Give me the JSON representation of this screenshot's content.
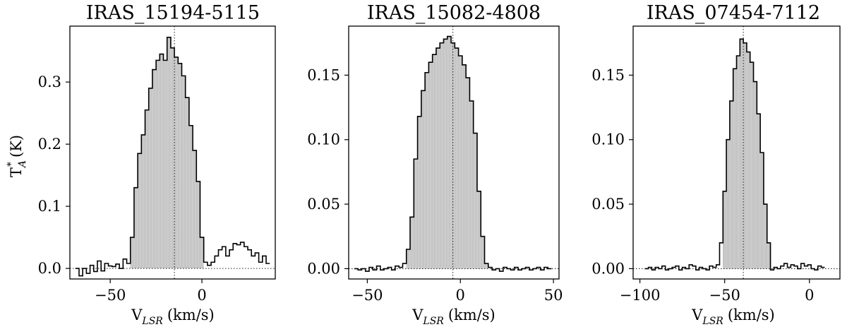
{
  "y_axis_label_main": "T",
  "y_axis_label_sup": "*",
  "y_axis_label_sub": "A",
  "y_axis_label_unit": "(K)",
  "chart_data": [
    {
      "type": "line",
      "title": "IRAS_15194-5115",
      "xlabel": "V_LSR (km/s)",
      "xlabel_main": "V",
      "xlabel_sub": "LSR",
      "xlabel_unit": "(km/s)",
      "ylabel": "T*_A (K)",
      "xlim": [
        -72,
        40
      ],
      "ylim": [
        -0.017,
        0.39
      ],
      "xticks": [
        -50,
        0
      ],
      "xtick_labels": [
        "−50",
        "0"
      ],
      "yticks": [
        0.0,
        0.1,
        0.2,
        0.3
      ],
      "ytick_labels": [
        "0.0",
        "0.1",
        "0.2",
        "0.3"
      ],
      "v_center": -15,
      "emission_range": [
        -38,
        0
      ],
      "series": [
        {
          "x": [
            -68,
            -66,
            -64,
            -62,
            -60,
            -58,
            -56,
            -54,
            -52,
            -50,
            -48,
            -46,
            -44,
            -42,
            -40,
            -38,
            -36,
            -34,
            -32,
            -30,
            -28,
            -26,
            -24,
            -22,
            -20,
            -18,
            -16,
            -14,
            -12,
            -10,
            -8,
            -6,
            -4,
            -2,
            0,
            2,
            4,
            6,
            8,
            10,
            12,
            14,
            16,
            18,
            20,
            22,
            24,
            26,
            28,
            30,
            32,
            34,
            36
          ],
          "y": [
            0.0,
            -0.012,
            0.0,
            -0.008,
            0.005,
            -0.005,
            0.012,
            -0.004,
            0.008,
            0.004,
            0.003,
            0.007,
            0.0,
            0.015,
            0.008,
            0.05,
            0.13,
            0.185,
            0.215,
            0.255,
            0.29,
            0.32,
            0.335,
            0.345,
            0.335,
            0.372,
            0.355,
            0.34,
            0.33,
            0.31,
            0.275,
            0.23,
            0.19,
            0.14,
            0.05,
            0.01,
            0.005,
            0.01,
            0.02,
            0.03,
            0.035,
            0.02,
            0.03,
            0.04,
            0.038,
            0.042,
            0.035,
            0.03,
            0.02,
            0.025,
            0.01,
            0.02,
            0.008
          ]
        }
      ]
    },
    {
      "type": "line",
      "title": "IRAS_15082-4808",
      "xlabel": "V_LSR (km/s)",
      "xlabel_main": "V",
      "xlabel_sub": "LSR",
      "xlabel_unit": "(km/s)",
      "xlim": [
        -60,
        53
      ],
      "ylim": [
        -0.008,
        0.188
      ],
      "xticks": [
        -50,
        0,
        50
      ],
      "xtick_labels": [
        "−50",
        "0",
        "50"
      ],
      "yticks": [
        0.0,
        0.05,
        0.1,
        0.15
      ],
      "ytick_labels": [
        "0.00",
        "0.05",
        "0.10",
        "0.15"
      ],
      "v_center": -4,
      "emission_range": [
        -28,
        14
      ],
      "series": [
        {
          "x": [
            -56,
            -54,
            -52,
            -50,
            -48,
            -46,
            -44,
            -42,
            -40,
            -38,
            -36,
            -34,
            -32,
            -30,
            -28,
            -26,
            -24,
            -22,
            -20,
            -18,
            -16,
            -14,
            -12,
            -10,
            -8,
            -6,
            -4,
            -2,
            0,
            2,
            4,
            6,
            8,
            10,
            12,
            14,
            16,
            18,
            20,
            22,
            24,
            26,
            28,
            30,
            32,
            34,
            36,
            38,
            40,
            42,
            44,
            46,
            48
          ],
          "y": [
            0.0,
            -0.001,
            0.0,
            -0.002,
            0.001,
            -0.001,
            0.002,
            -0.001,
            0.0,
            0.001,
            -0.001,
            0.002,
            0.001,
            0.004,
            0.015,
            0.04,
            0.085,
            0.118,
            0.138,
            0.152,
            0.16,
            0.166,
            0.171,
            0.175,
            0.178,
            0.18,
            0.175,
            0.171,
            0.165,
            0.158,
            0.148,
            0.13,
            0.105,
            0.06,
            0.025,
            0.004,
            0.001,
            -0.001,
            0.0,
            -0.002,
            0.001,
            0.0,
            -0.001,
            0.001,
            -0.001,
            0.0,
            0.001,
            -0.001,
            0.0,
            0.001,
            -0.001,
            0.001,
            0.0
          ]
        }
      ]
    },
    {
      "type": "line",
      "title": "IRAS_07454-7112",
      "xlabel": "V_LSR (km/s)",
      "xlabel_main": "V",
      "xlabel_sub": "LSR",
      "xlabel_unit": "(km/s)",
      "xlim": [
        -104,
        18
      ],
      "ylim": [
        -0.008,
        0.188
      ],
      "xticks": [
        -100,
        -50,
        0
      ],
      "xtick_labels": [
        "−100",
        "−50",
        "0"
      ],
      "yticks": [
        0.0,
        0.05,
        0.1,
        0.15
      ],
      "ytick_labels": [
        "0.00",
        "0.05",
        "0.10",
        "0.15"
      ],
      "v_center": -39,
      "emission_range": [
        -50,
        -24
      ],
      "series": [
        {
          "x": [
            -96,
            -94,
            -92,
            -90,
            -88,
            -86,
            -84,
            -82,
            -80,
            -78,
            -76,
            -74,
            -72,
            -70,
            -68,
            -66,
            -64,
            -62,
            -60,
            -58,
            -56,
            -54,
            -52,
            -50,
            -48,
            -46,
            -44,
            -42,
            -40,
            -38,
            -36,
            -34,
            -32,
            -30,
            -28,
            -26,
            -24,
            -22,
            -20,
            -18,
            -16,
            -14,
            -12,
            -10,
            -8,
            -6,
            -4,
            -2,
            0,
            2,
            4,
            6,
            8
          ],
          "y": [
            0.0,
            0.001,
            -0.001,
            0.001,
            0.0,
            0.002,
            -0.001,
            0.0,
            0.001,
            0.002,
            -0.001,
            0.001,
            0.0,
            0.003,
            0.002,
            -0.001,
            0.001,
            0.0,
            -0.001,
            0.002,
            0.001,
            0.003,
            0.02,
            0.06,
            0.1,
            0.13,
            0.155,
            0.165,
            0.178,
            0.175,
            0.168,
            0.16,
            0.145,
            0.12,
            0.09,
            0.05,
            0.02,
            -0.001,
            0.001,
            0.0,
            0.002,
            0.004,
            0.001,
            0.003,
            0.002,
            0.0,
            0.004,
            0.002,
            0.003,
            0.0,
            -0.001,
            0.002,
            0.001
          ]
        }
      ]
    }
  ]
}
